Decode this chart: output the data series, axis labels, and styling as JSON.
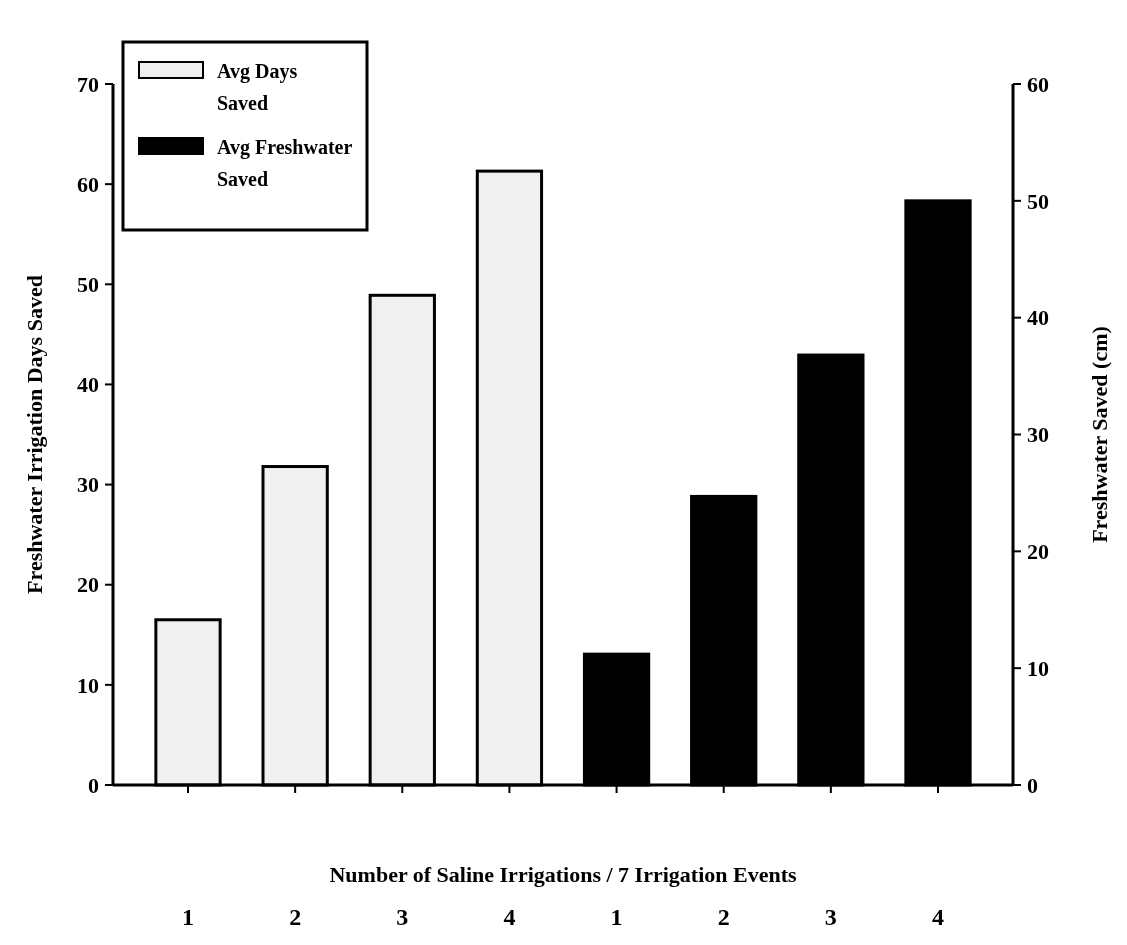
{
  "chart_data": {
    "type": "bar",
    "xlabel": "Number of Saline Irrigations / 7 Irrigation Events",
    "ylabel": "Freshwater Irrigation Days Saved",
    "y2label": "Freshwater Saved (cm)",
    "categories": [
      "1",
      "2",
      "3",
      "4",
      "1",
      "2",
      "3",
      "4"
    ],
    "series": [
      {
        "name": "Avg Days Saved",
        "color": "#f0f0f0",
        "values": [
          16.5,
          31.8,
          48.9,
          61.3,
          null,
          null,
          null,
          null
        ]
      },
      {
        "name": "Avg Freshwater Saved",
        "color": "#000000",
        "axis": "y2",
        "values": [
          null,
          null,
          null,
          null,
          11.2,
          24.7,
          36.8,
          50.0
        ]
      }
    ],
    "ylim": [
      0,
      70
    ],
    "yticks": [
      0,
      10,
      20,
      30,
      40,
      50,
      60,
      70
    ],
    "y2lim": [
      0,
      60
    ],
    "y2ticks": [
      0,
      10,
      20,
      30,
      40,
      50,
      60
    ],
    "legend": "top left",
    "grid": false
  }
}
